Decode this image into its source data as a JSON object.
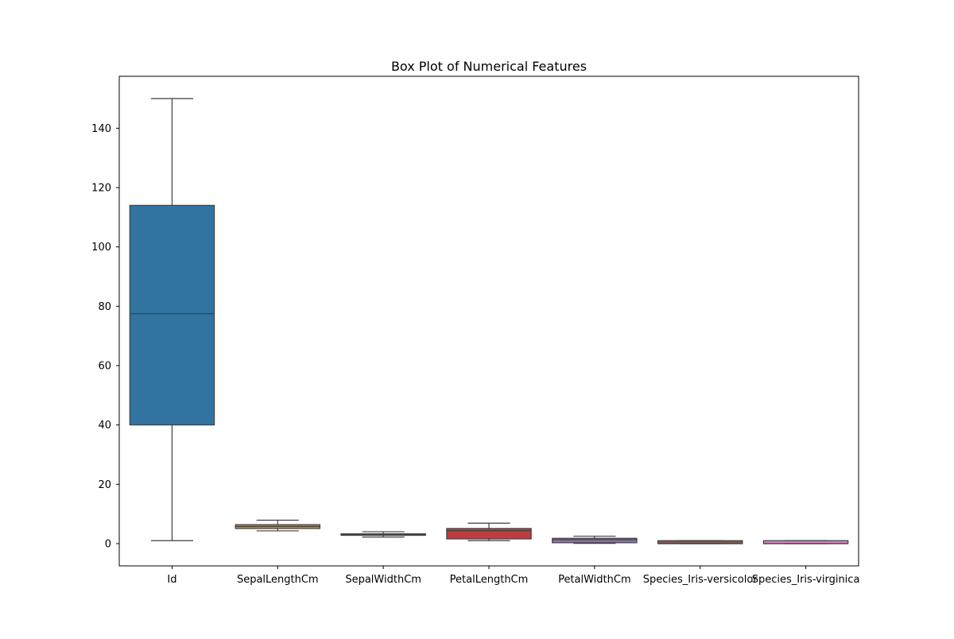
{
  "chart_data": {
    "type": "box",
    "title": "Box Plot of Numerical Features",
    "xlabel": "",
    "ylabel": "",
    "ylim": [
      -7.5,
      157.5
    ],
    "yticks": [
      0,
      20,
      40,
      60,
      80,
      100,
      120,
      140
    ],
    "grid": false,
    "legend": "none",
    "categories": [
      "Id",
      "SepalLengthCm",
      "SepalWidthCm",
      "PetalLengthCm",
      "PetalWidthCm",
      "Species_Iris-versicolor",
      "Species_Iris-virginica"
    ],
    "series": [
      {
        "category": "Id",
        "min": 1,
        "q1": 40,
        "median": 77.5,
        "q3": 114,
        "max": 150,
        "color": "#3274a1"
      },
      {
        "category": "SepalLengthCm",
        "min": 4.3,
        "q1": 5.1,
        "median": 5.8,
        "q3": 6.4,
        "max": 7.9,
        "color": "#e1812c"
      },
      {
        "category": "SepalWidthCm",
        "min": 2.2,
        "q1": 2.8,
        "median": 3.0,
        "q3": 3.3,
        "max": 4.0,
        "color": "#3a923a"
      },
      {
        "category": "PetalLengthCm",
        "min": 1.0,
        "q1": 1.6,
        "median": 4.35,
        "q3": 5.1,
        "max": 6.9,
        "color": "#c03d3e"
      },
      {
        "category": "PetalWidthCm",
        "min": 0.1,
        "q1": 0.3,
        "median": 1.3,
        "q3": 1.8,
        "max": 2.5,
        "color": "#9372b2"
      },
      {
        "category": "Species_Iris-versicolor",
        "min": 0,
        "q1": 0,
        "median": 0,
        "q3": 1,
        "max": 1,
        "color": "#845b53"
      },
      {
        "category": "Species_Iris-virginica",
        "min": 0,
        "q1": 0,
        "median": 0,
        "q3": 1,
        "max": 1,
        "color": "#d684bd"
      }
    ],
    "line_color": "#3f3f3f"
  }
}
